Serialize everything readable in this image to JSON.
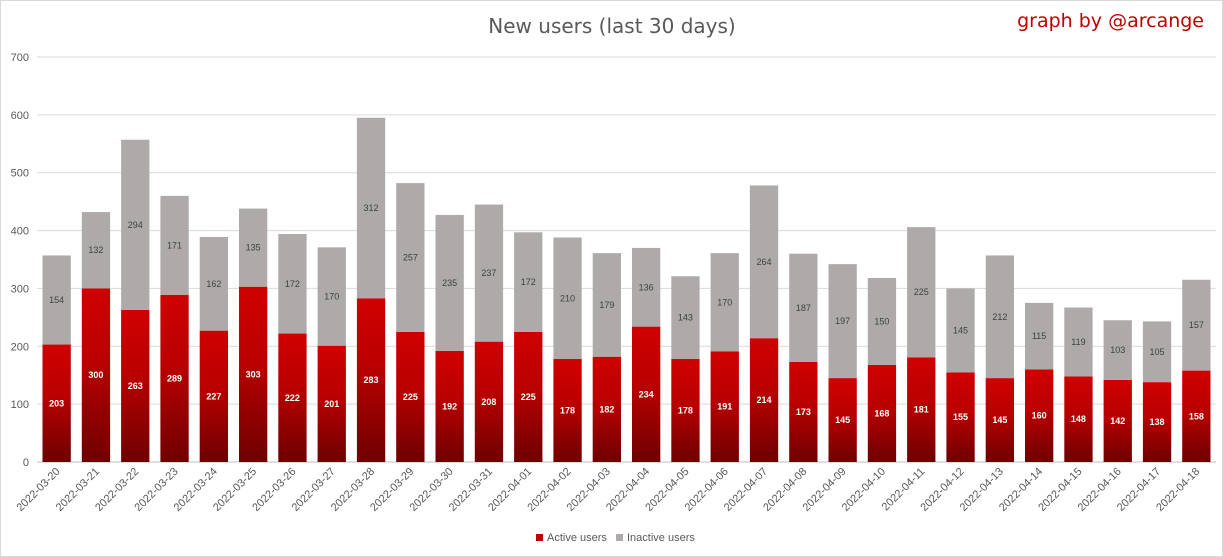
{
  "credit": "graph by @arcange",
  "chart_data": {
    "type": "bar",
    "stacked": true,
    "title": "New users (last 30 days)",
    "xlabel": "",
    "ylabel": "",
    "ylim": [
      0,
      700
    ],
    "yticks": [
      0,
      100,
      200,
      300,
      400,
      500,
      600,
      700
    ],
    "grid": true,
    "legend_position": "bottom",
    "categories": [
      "2022-03-20",
      "2022-03-21",
      "2022-03-22",
      "2022-03-23",
      "2022-03-24",
      "2022-03-25",
      "2022-03-26",
      "2022-03-27",
      "2022-03-28",
      "2022-03-29",
      "2022-03-30",
      "2022-03-31",
      "2022-04-01",
      "2022-04-02",
      "2022-04-03",
      "2022-04-04",
      "2022-04-05",
      "2022-04-06",
      "2022-04-07",
      "2022-04-08",
      "2022-04-09",
      "2022-04-10",
      "2022-04-11",
      "2022-04-12",
      "2022-04-13",
      "2022-04-14",
      "2022-04-15",
      "2022-04-16",
      "2022-04-17",
      "2022-04-18"
    ],
    "series": [
      {
        "name": "Active users",
        "color": "#c00000",
        "values": [
          203,
          300,
          263,
          289,
          227,
          303,
          222,
          201,
          283,
          225,
          192,
          208,
          225,
          178,
          182,
          234,
          178,
          191,
          214,
          173,
          145,
          168,
          181,
          155,
          145,
          160,
          148,
          142,
          138,
          158
        ]
      },
      {
        "name": "Inactive users",
        "color": "#aeaaaa",
        "values": [
          154,
          132,
          294,
          171,
          162,
          135,
          172,
          170,
          312,
          257,
          235,
          237,
          172,
          210,
          179,
          136,
          143,
          170,
          264,
          187,
          197,
          150,
          225,
          145,
          212,
          115,
          119,
          103,
          105,
          157
        ]
      }
    ]
  }
}
